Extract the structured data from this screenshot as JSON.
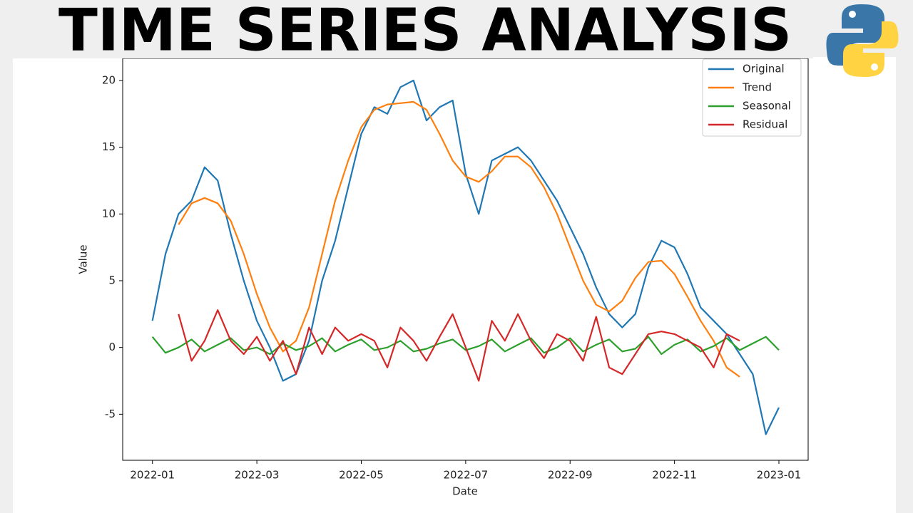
{
  "header": {
    "title": "TIME SERIES ANALYSIS"
  },
  "chart_data": {
    "type": "line",
    "x_label": "Date",
    "y_label": "Value",
    "x": [
      1,
      1.25,
      1.5,
      1.75,
      2,
      2.25,
      2.5,
      2.75,
      3,
      3.25,
      3.5,
      3.75,
      4,
      4.25,
      4.5,
      4.75,
      5,
      5.25,
      5.5,
      5.75,
      6,
      6.25,
      6.5,
      6.75,
      7,
      7.25,
      7.5,
      7.75,
      8,
      8.25,
      8.5,
      8.75,
      9,
      9.25,
      9.5,
      9.75,
      10,
      10.25,
      10.5,
      10.75,
      11,
      11.25,
      11.5,
      11.75,
      12,
      12.25,
      12.5,
      12.75,
      13
    ],
    "xlim": [
      0.43,
      13.56
    ],
    "xticks": [
      {
        "value": 1,
        "label": "2022-01"
      },
      {
        "value": 3,
        "label": "2022-03"
      },
      {
        "value": 5,
        "label": "2022-05"
      },
      {
        "value": 7,
        "label": "2022-07"
      },
      {
        "value": 9,
        "label": "2022-09"
      },
      {
        "value": 11,
        "label": "2022-11"
      },
      {
        "value": 13,
        "label": "2023-01"
      }
    ],
    "ylim": [
      -8.45,
      21.65
    ],
    "yticks": [
      -5,
      0,
      5,
      10,
      15,
      20
    ],
    "grid": false,
    "legend": "upper right",
    "series": [
      {
        "name": "Original",
        "color": "#1f77b4",
        "values": [
          2,
          7,
          10,
          11,
          13.5,
          12.5,
          8.5,
          5,
          2,
          0,
          -2.5,
          -2,
          0.5,
          5,
          8,
          12,
          16,
          18,
          17.5,
          19.5,
          20,
          17,
          18,
          18.5,
          13,
          10,
          14,
          14.5,
          15,
          14,
          12.5,
          11,
          9,
          7,
          4.5,
          2.5,
          1.5,
          2.5,
          6,
          8,
          7.5,
          5.5,
          3,
          2,
          1,
          -0.5,
          -2,
          -6.5,
          -4.5
        ]
      },
      {
        "name": "Trend",
        "color": "#ff7f0e",
        "values": [
          null,
          null,
          9.2,
          10.8,
          11.2,
          10.8,
          9.5,
          7,
          4,
          1.5,
          -0.3,
          0.5,
          3,
          7,
          11,
          14,
          16.5,
          17.8,
          18.2,
          18.3,
          18.4,
          17.8,
          16,
          14,
          12.8,
          12.4,
          13.2,
          14.3,
          14.3,
          13.5,
          12,
          10,
          7.5,
          5,
          3.2,
          2.7,
          3.5,
          5.2,
          6.4,
          6.5,
          5.5,
          3.8,
          2,
          0.5,
          -1.5,
          -2.2,
          null,
          null,
          null
        ]
      },
      {
        "name": "Seasonal",
        "color": "#2ca02c",
        "values": [
          0.8,
          -0.4,
          0,
          0.6,
          -0.3,
          0.2,
          0.7,
          -0.2,
          0,
          -0.5,
          0.3,
          -0.2,
          0.1,
          0.7,
          -0.3,
          0.2,
          0.6,
          -0.2,
          0,
          0.5,
          -0.3,
          -0.1,
          0.3,
          0.6,
          -0.2,
          0.1,
          0.6,
          -0.3,
          0.2,
          0.7,
          -0.4,
          0,
          0.7,
          -0.3,
          0.2,
          0.6,
          -0.3,
          -0.1,
          0.8,
          -0.5,
          0.2,
          0.6,
          -0.3,
          0.1,
          0.7,
          -0.2,
          0.3,
          0.8,
          -0.2
        ]
      },
      {
        "name": "Residual",
        "color": "#d62728",
        "values": [
          null,
          null,
          2.5,
          -1,
          0.5,
          2.8,
          0.5,
          -0.5,
          0.8,
          -1,
          0.5,
          -2,
          1.5,
          -0.5,
          1.5,
          0.5,
          1,
          0.5,
          -1.5,
          1.5,
          0.5,
          -1,
          0.8,
          2.5,
          0,
          -2.5,
          2,
          0.5,
          2.5,
          0.5,
          -0.8,
          1,
          0.5,
          -1,
          2.3,
          -1.5,
          -2,
          -0.5,
          1,
          1.2,
          1,
          0.5,
          0,
          -1.5,
          1,
          0.5,
          null,
          null,
          null
        ]
      }
    ]
  }
}
